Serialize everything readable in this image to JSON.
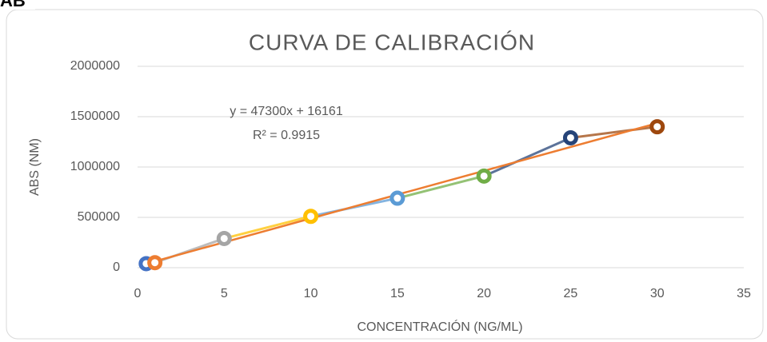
{
  "header": "AB",
  "chart_data": {
    "type": "scatter",
    "title": "CURVA DE CALIBRACIÓN",
    "x_label": "CONCENTRACIÓN (NG/ML)",
    "y_label": "ABS (NM)",
    "x": [
      0.5,
      1,
      5,
      10,
      15,
      20,
      25,
      30
    ],
    "values": [
      40000,
      50000,
      290000,
      510000,
      690000,
      910000,
      1290000,
      1400000
    ],
    "colors": [
      "#4472c4",
      "#ed7d31",
      "#a5a5a5",
      "#ffc000",
      "#5b9bd5",
      "#70ad47",
      "#264478",
      "#9e480e"
    ],
    "xlim": [
      0,
      35
    ],
    "xticks": [
      0,
      5,
      10,
      15,
      20,
      25,
      30,
      35
    ],
    "ylim": [
      0,
      2000000
    ],
    "yticks": [
      0,
      500000,
      1000000,
      1500000,
      2000000
    ],
    "grid": true,
    "trendline": {
      "slope": 47300,
      "intercept": 16161,
      "color": "#ed7d31",
      "equation": "y = 47300x + 16161",
      "r_squared": "R² = 0.9915"
    }
  }
}
